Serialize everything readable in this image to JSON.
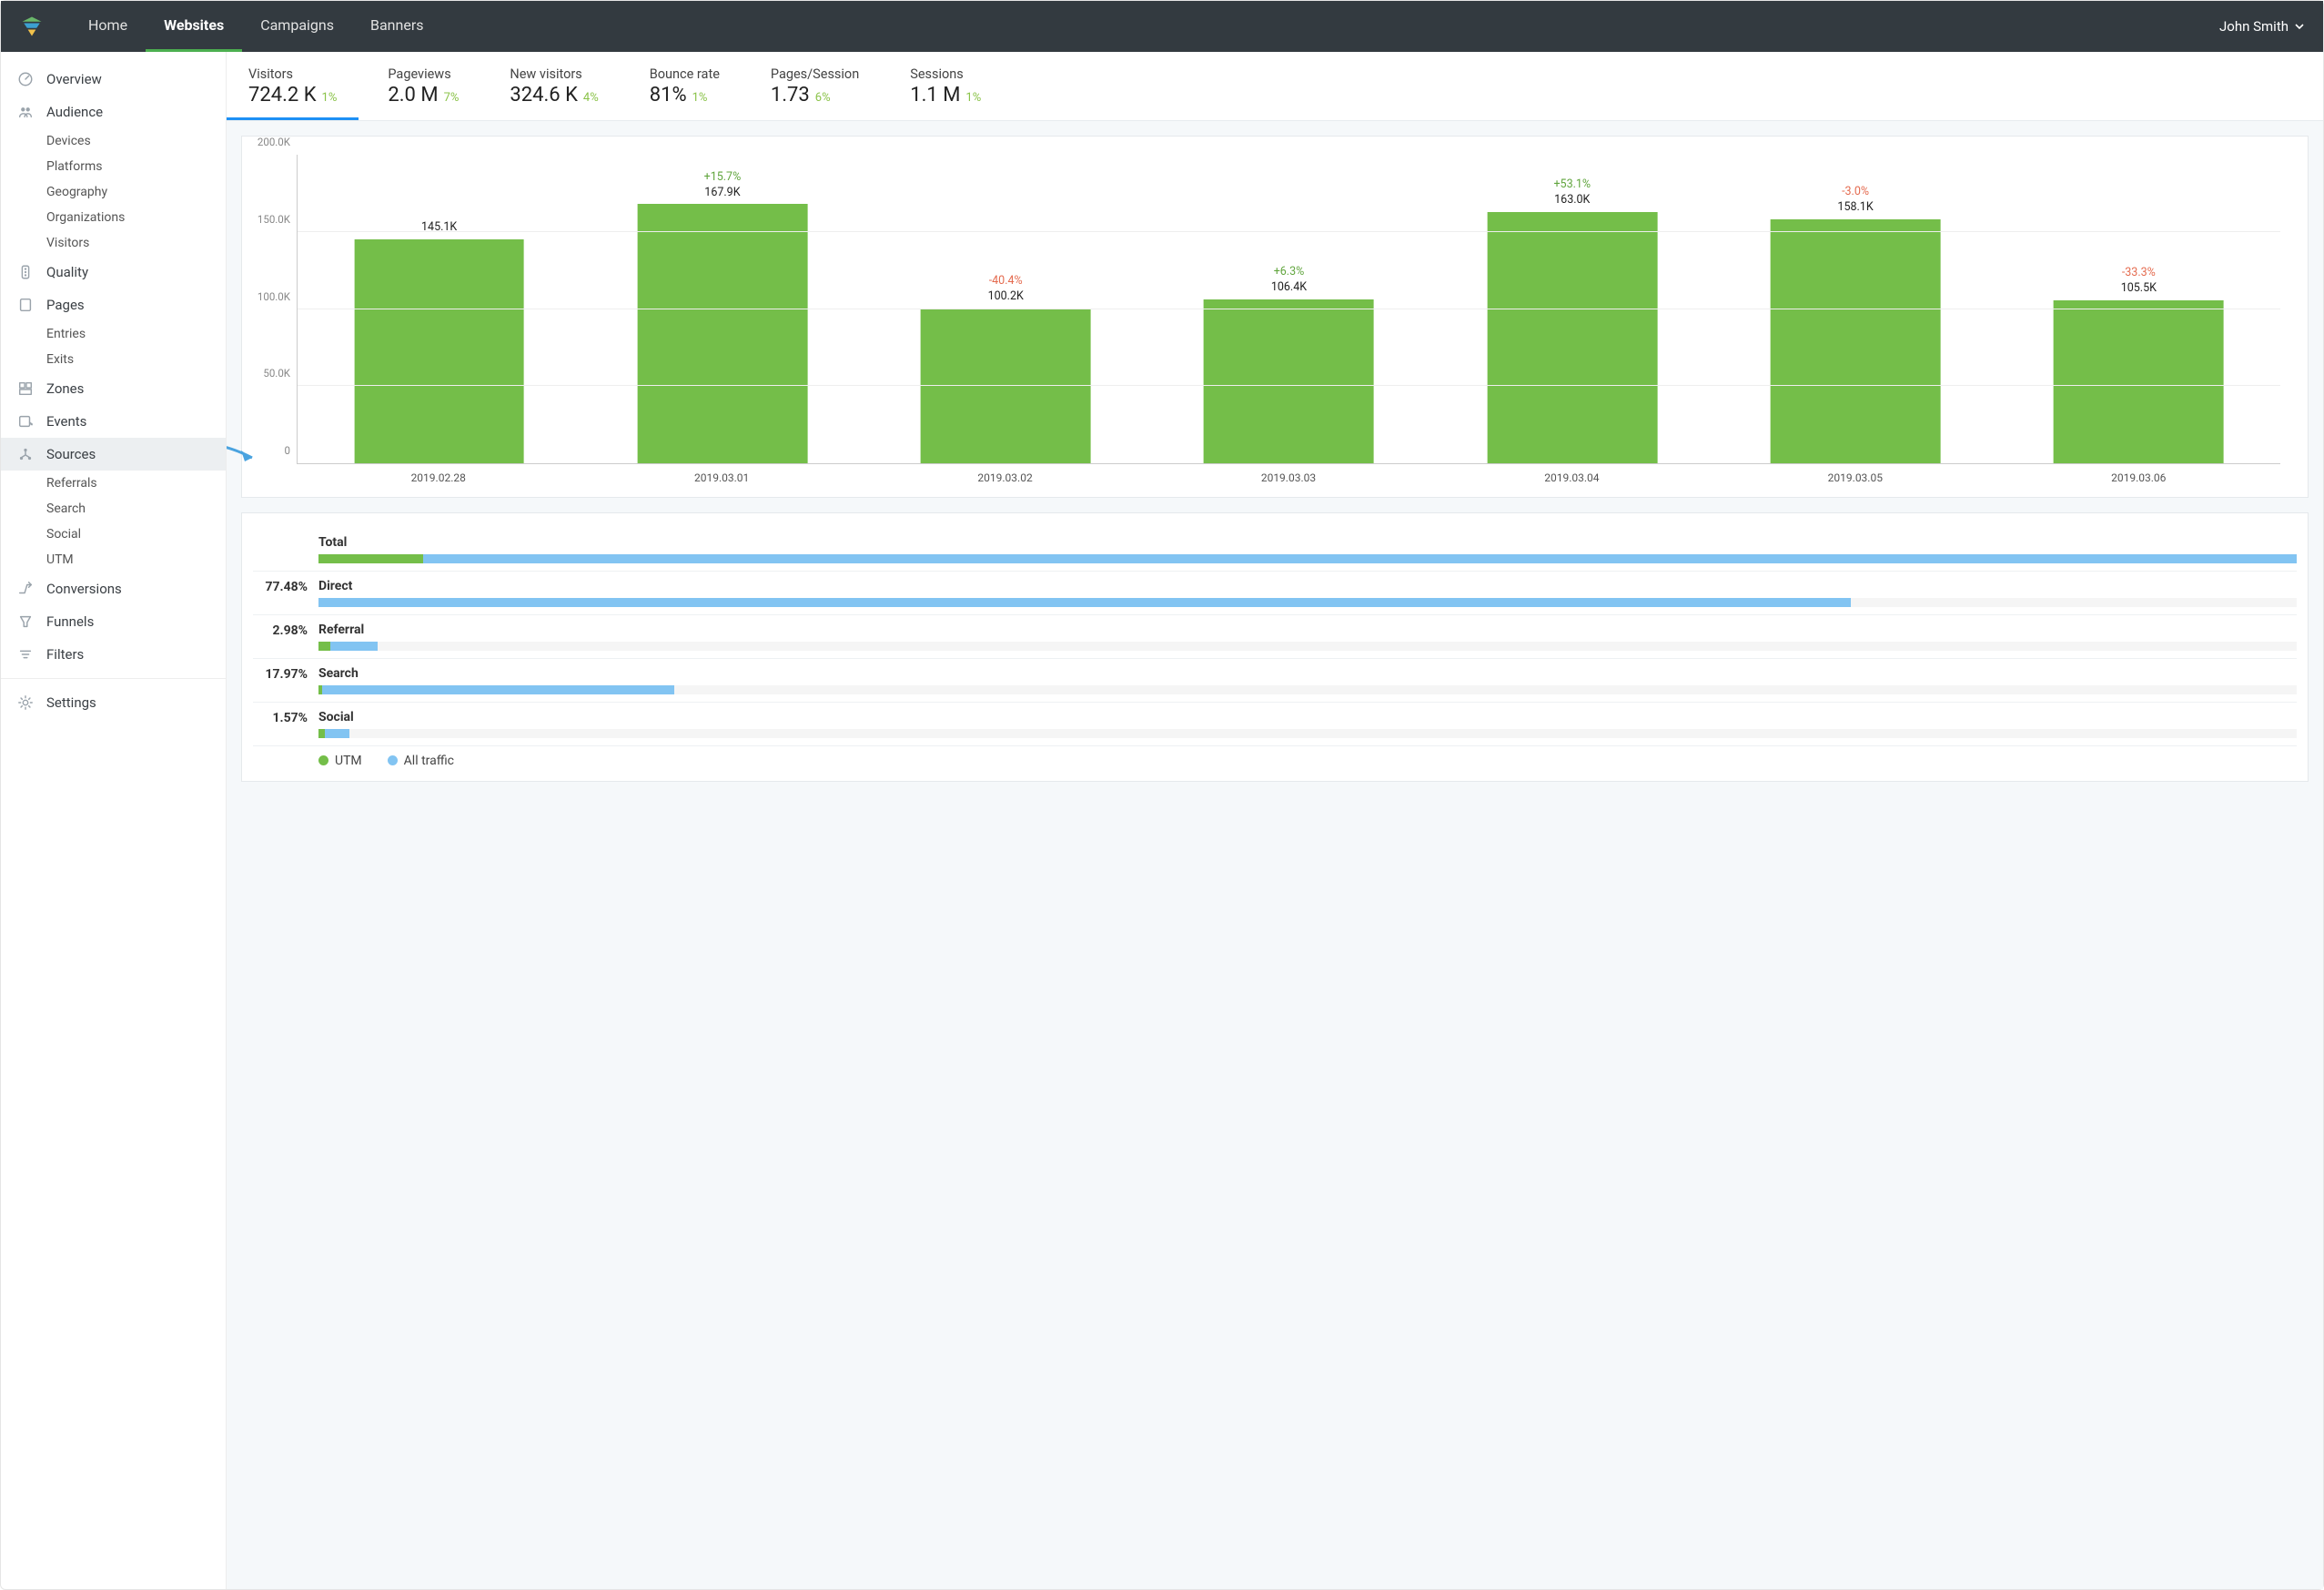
{
  "colors": {
    "topbar_bg": "#333a40",
    "nav_active": "#4caf50",
    "kpi_active": "#1d90f5",
    "bar_fill": "#74be49",
    "traffic_fill": "#82c4f2",
    "utm_fill": "#74be49",
    "delta_pos": "#61a53e",
    "delta_neg": "#e46a4e",
    "grid": "#eeeeee",
    "axis": "#cccccc",
    "panel_border": "#e5e9ec",
    "main_bg": "#f5f8fa",
    "arrow": "#4aa3df"
  },
  "topnav": {
    "items": [
      "Home",
      "Websites",
      "Campaigns",
      "Banners"
    ],
    "active_index": 1
  },
  "user": {
    "name": "John Smith"
  },
  "sidebar": [
    {
      "label": "Overview",
      "icon": "gauge"
    },
    {
      "label": "Audience",
      "icon": "people",
      "children": [
        "Devices",
        "Platforms",
        "Geography",
        "Organizations",
        "Visitors"
      ]
    },
    {
      "label": "Quality",
      "icon": "traffic-light"
    },
    {
      "label": "Pages",
      "icon": "page",
      "children": [
        "Entries",
        "Exits"
      ]
    },
    {
      "label": "Zones",
      "icon": "zones"
    },
    {
      "label": "Events",
      "icon": "events"
    },
    {
      "label": "Sources",
      "icon": "sources",
      "selected": true,
      "children": [
        "Referrals",
        "Search",
        "Social",
        "UTM"
      ]
    },
    {
      "label": "Conversions",
      "icon": "conversions"
    },
    {
      "label": "Funnels",
      "icon": "funnel"
    },
    {
      "label": "Filters",
      "icon": "filter"
    },
    {
      "sep": true
    },
    {
      "label": "Settings",
      "icon": "gear"
    }
  ],
  "kpis": [
    {
      "label": "Visitors",
      "value": "724.2 K",
      "delta": "1%",
      "active": true
    },
    {
      "label": "Pageviews",
      "value": "2.0 M",
      "delta": "7%"
    },
    {
      "label": "New visitors",
      "value": "324.6 K",
      "delta": "4%"
    },
    {
      "label": "Bounce rate",
      "value": "81%",
      "delta": "1%"
    },
    {
      "label": "Pages/Session",
      "value": "1.73",
      "delta": "6%"
    },
    {
      "label": "Sessions",
      "value": "1.1 M",
      "delta": "1%"
    }
  ],
  "barchart": {
    "type": "bar",
    "ymax": 200000,
    "yticks": [
      {
        "v": 0,
        "label": "0"
      },
      {
        "v": 50000,
        "label": "50.0K"
      },
      {
        "v": 100000,
        "label": "100.0K"
      },
      {
        "v": 150000,
        "label": "150.0K"
      },
      {
        "v": 200000,
        "label": "200.0K"
      }
    ],
    "bars": [
      {
        "x": "2019.02.28",
        "value": 145100,
        "label": "145.1K"
      },
      {
        "x": "2019.03.01",
        "value": 167900,
        "label": "167.9K",
        "pct": "+15.7%",
        "pos": true
      },
      {
        "x": "2019.03.02",
        "value": 100200,
        "label": "100.2K",
        "pct": "-40.4%",
        "pos": false
      },
      {
        "x": "2019.03.03",
        "value": 106400,
        "label": "106.4K",
        "pct": "+6.3%",
        "pos": true
      },
      {
        "x": "2019.03.04",
        "value": 163000,
        "label": "163.0K",
        "pct": "+53.1%",
        "pos": true
      },
      {
        "x": "2019.03.05",
        "value": 158100,
        "label": "158.1K",
        "pct": "-3.0%",
        "pos": false
      },
      {
        "x": "2019.03.06",
        "value": 105500,
        "label": "105.5K",
        "pct": "-33.3%",
        "pos": false
      }
    ]
  },
  "sources_breakdown": {
    "rows": [
      {
        "label": "Total",
        "pct_text": "",
        "traffic_pct": 100.0,
        "utm_pct": 5.3
      },
      {
        "label": "Direct",
        "pct_text": "77.48%",
        "traffic_pct": 77.48,
        "utm_pct": 0.0
      },
      {
        "label": "Referral",
        "pct_text": "2.98%",
        "traffic_pct": 2.98,
        "utm_pct": 0.6
      },
      {
        "label": "Search",
        "pct_text": "17.97%",
        "traffic_pct": 17.97,
        "utm_pct": 0.2
      },
      {
        "label": "Social",
        "pct_text": "1.57%",
        "traffic_pct": 1.57,
        "utm_pct": 0.3
      }
    ],
    "legend": [
      {
        "label": "UTM",
        "color_key": "utm_fill"
      },
      {
        "label": "All traffic",
        "color_key": "traffic_fill"
      }
    ]
  }
}
